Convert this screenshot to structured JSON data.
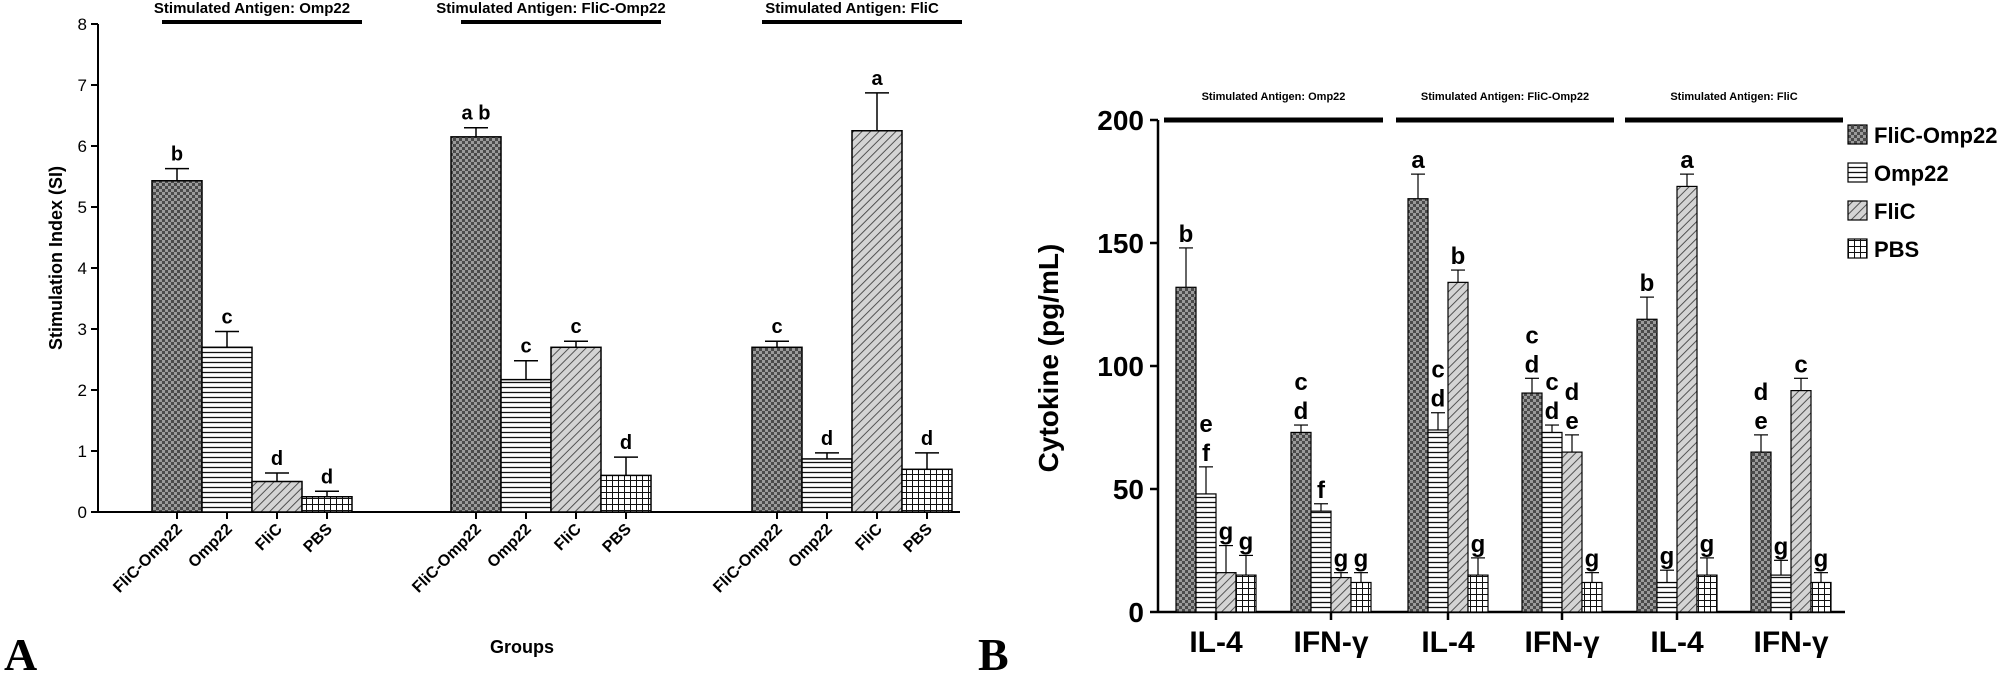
{
  "panel_labels": [
    "A",
    "B"
  ],
  "chart_data": [
    {
      "type": "bar",
      "panel": "A",
      "ylabel": "Stimulation Index (SI)",
      "xlabel": "Groups",
      "ylim": [
        0,
        8
      ],
      "yticks": [
        0,
        1,
        2,
        3,
        4,
        5,
        6,
        7,
        8
      ],
      "groups": [
        {
          "header": "Stimulated Antigen: Omp22",
          "bars": [
            {
              "category": "FliC-Omp22",
              "value": 5.43,
              "error": 0.2,
              "pattern": "checker",
              "letter": "b"
            },
            {
              "category": "Omp22",
              "value": 2.7,
              "error": 0.26,
              "pattern": "hlines",
              "letter": "c"
            },
            {
              "category": "FliC",
              "value": 0.5,
              "error": 0.14,
              "pattern": "diag",
              "letter": "d"
            },
            {
              "category": "PBS",
              "value": 0.25,
              "error": 0.09,
              "pattern": "grid",
              "letter": "d"
            }
          ]
        },
        {
          "header": "Stimulated Antigen: FliC-Omp22",
          "bars": [
            {
              "category": "FliC-Omp22",
              "value": 6.15,
              "error": 0.15,
              "pattern": "checker",
              "letter": "a b"
            },
            {
              "category": "Omp22",
              "value": 2.17,
              "error": 0.31,
              "pattern": "hlines",
              "letter": "c"
            },
            {
              "category": "FliC",
              "value": 2.7,
              "error": 0.1,
              "pattern": "diag",
              "letter": "c"
            },
            {
              "category": "PBS",
              "value": 0.6,
              "error": 0.3,
              "pattern": "grid",
              "letter": "d"
            }
          ]
        },
        {
          "header": "Stimulated Antigen: FliC",
          "bars": [
            {
              "category": "FliC-Omp22",
              "value": 2.7,
              "error": 0.1,
              "pattern": "checker",
              "letter": "c"
            },
            {
              "category": "Omp22",
              "value": 0.87,
              "error": 0.1,
              "pattern": "hlines",
              "letter": "d"
            },
            {
              "category": "FliC",
              "value": 6.25,
              "error": 0.62,
              "pattern": "diag",
              "letter": "a"
            },
            {
              "category": "PBS",
              "value": 0.7,
              "error": 0.27,
              "pattern": "grid",
              "letter": "d"
            }
          ]
        }
      ]
    },
    {
      "type": "bar",
      "panel": "B",
      "ylabel": "Cytokine (pg/mL)",
      "ylim": [
        0,
        200
      ],
      "yticks": [
        0,
        50,
        100,
        150,
        200
      ],
      "legend": [
        {
          "label": "FliC-Omp22",
          "pattern": "checker"
        },
        {
          "label": "Omp22",
          "pattern": "hlines"
        },
        {
          "label": "FliC",
          "pattern": "diag"
        },
        {
          "label": "PBS",
          "pattern": "grid"
        }
      ],
      "groups": [
        {
          "header": "Stimulated Antigen: Omp22",
          "clusters": [
            {
              "label": "IL-4",
              "values": [
                132,
                48,
                16,
                15
              ],
              "errors": [
                16,
                11,
                11,
                8
              ],
              "letters": [
                [
                  "b"
                ],
                [
                  "e",
                  "f"
                ],
                [
                  "g"
                ],
                [
                  "g"
                ]
              ]
            },
            {
              "label": "IFN-γ",
              "values": [
                73,
                41,
                14,
                12
              ],
              "errors": [
                3,
                3,
                2,
                4
              ],
              "letters": [
                [
                  "c",
                  "d"
                ],
                [
                  "f"
                ],
                [
                  "g"
                ],
                [
                  "g"
                ]
              ]
            }
          ]
        },
        {
          "header": "Stimulated Antigen: FliC-Omp22",
          "clusters": [
            {
              "label": "IL-4",
              "values": [
                168,
                74,
                134,
                15
              ],
              "errors": [
                10,
                7,
                5,
                7
              ],
              "letters": [
                [
                  "a"
                ],
                [
                  "c",
                  "d"
                ],
                [
                  "b"
                ],
                [
                  "g"
                ]
              ]
            },
            {
              "label": "IFN-γ",
              "values": [
                89,
                73,
                65,
                12
              ],
              "errors": [
                6,
                3,
                7,
                4
              ],
              "letters": [
                [
                  "c",
                  "d"
                ],
                [
                  "c",
                  "d"
                ],
                [
                  "d",
                  "e"
                ],
                [
                  "g"
                ]
              ]
            }
          ]
        },
        {
          "header": "Stimulated Antigen: FliC",
          "clusters": [
            {
              "label": "IL-4",
              "values": [
                119,
                12,
                173,
                15
              ],
              "errors": [
                9,
                5,
                5,
                7
              ],
              "letters": [
                [
                  "b"
                ],
                [
                  "g"
                ],
                [
                  "a"
                ],
                [
                  "g"
                ]
              ]
            },
            {
              "label": "IFN-γ",
              "values": [
                65,
                15,
                90,
                12
              ],
              "errors": [
                7,
                6,
                5,
                4
              ],
              "letters": [
                [
                  "d",
                  "e"
                ],
                [
                  "g"
                ],
                [
                  "c"
                ],
                [
                  "g"
                ]
              ]
            }
          ]
        }
      ]
    }
  ]
}
